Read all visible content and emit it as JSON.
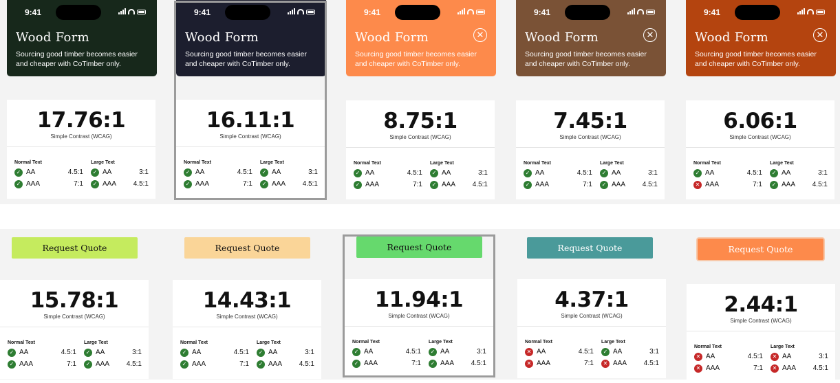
{
  "status_time": "9:41",
  "header_title": "Wood Form",
  "header_subtitle": "Sourcing good timber becomes easier and cheaper with CoTimber only.",
  "button_label": "Request Quote",
  "contrast_label": "Simple Contrast (WCAG)",
  "normal_text_label": "Normal Text",
  "large_text_label": "Large Text",
  "levels": {
    "aa": "AA",
    "aaa": "AAA"
  },
  "normal_req": {
    "aa": "4.5:1",
    "aaa": "7:1"
  },
  "large_req": {
    "aa": "3:1",
    "aaa": "4.5:1"
  },
  "headers": [
    {
      "bg": "#17281b",
      "ratio": "17.76:1",
      "close": false,
      "results": {
        "normal_aa": "pass",
        "normal_aaa": "pass",
        "large_aa": "pass",
        "large_aaa": "pass"
      }
    },
    {
      "bg": "#1c1e2e",
      "ratio": "16.11:1",
      "close": false,
      "selected": true,
      "results": {
        "normal_aa": "pass",
        "normal_aaa": "pass",
        "large_aa": "pass",
        "large_aaa": "pass"
      }
    },
    {
      "bg": "#fd8a4b",
      "ratio": "8.75:1",
      "close": true,
      "results": {
        "normal_aa": "pass",
        "normal_aaa": "pass",
        "large_aa": "pass",
        "large_aaa": "pass"
      }
    },
    {
      "bg": "#7a5236",
      "ratio": "7.45:1",
      "close": true,
      "results": {
        "normal_aa": "pass",
        "normal_aaa": "pass",
        "large_aa": "pass",
        "large_aaa": "pass"
      }
    },
    {
      "bg": "#b4440f",
      "ratio": "6.06:1",
      "close": true,
      "results": {
        "normal_aa": "pass",
        "normal_aaa": "fail",
        "large_aa": "pass",
        "large_aaa": "pass"
      }
    }
  ],
  "buttons": [
    {
      "bg": "#c5eb5e",
      "text_color": "#111111",
      "ratio": "15.78:1",
      "results": {
        "normal_aa": "pass",
        "normal_aaa": "pass",
        "large_aa": "pass",
        "large_aaa": "pass"
      }
    },
    {
      "bg": "#fad598",
      "text_color": "#111111",
      "ratio": "14.43:1",
      "results": {
        "normal_aa": "pass",
        "normal_aaa": "pass",
        "large_aa": "pass",
        "large_aaa": "pass"
      }
    },
    {
      "bg": "#66d96d",
      "text_color": "#111111",
      "ratio": "11.94:1",
      "selected": true,
      "results": {
        "normal_aa": "pass",
        "normal_aaa": "pass",
        "large_aa": "pass",
        "large_aaa": "pass"
      }
    },
    {
      "bg": "#4a9a9a",
      "text_color": "#ffffff",
      "ratio": "4.37:1",
      "results": {
        "normal_aa": "fail",
        "normal_aaa": "fail",
        "large_aa": "pass",
        "large_aaa": "fail"
      }
    },
    {
      "bg": "#fd8a4b",
      "text_color": "#ffffff",
      "ratio": "2.44:1",
      "results": {
        "normal_aa": "fail",
        "normal_aaa": "fail",
        "large_aa": "fail",
        "large_aaa": "fail"
      }
    }
  ]
}
